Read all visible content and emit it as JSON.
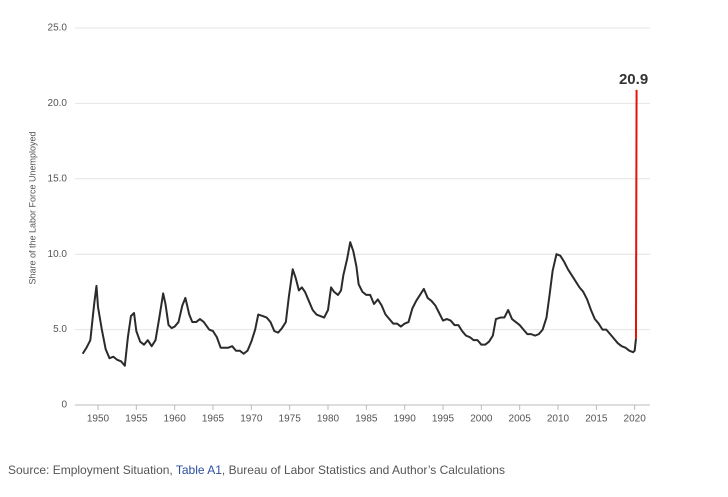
{
  "chart_data": {
    "type": "line",
    "y_label": "Share of the Labor Force Unemployed",
    "xlim": [
      1947,
      2022
    ],
    "xticks": [
      1950,
      1955,
      1960,
      1965,
      1970,
      1975,
      1980,
      1985,
      1990,
      1995,
      2000,
      2005,
      2010,
      2015,
      2020
    ],
    "ylim": [
      0,
      25
    ],
    "yticks": [
      0,
      {
        "value": 5,
        "label": "5.0"
      },
      {
        "value": 10,
        "label": "10.0"
      },
      {
        "value": 15,
        "label": "15.0"
      },
      {
        "value": 20,
        "label": "20.0"
      },
      {
        "value": 25,
        "label": "25.0"
      }
    ],
    "grid": true,
    "series": [
      {
        "color": "#2b2b2b",
        "x": [
          1948.0,
          1948.5,
          1949.0,
          1949.5,
          1949.8,
          1950.0,
          1950.5,
          1951.0,
          1951.5,
          1952.0,
          1952.5,
          1953.0,
          1953.5,
          1953.9,
          1954.3,
          1954.7,
          1955.0,
          1955.5,
          1956.0,
          1956.5,
          1957.0,
          1957.5,
          1958.0,
          1958.5,
          1958.8,
          1959.2,
          1959.6,
          1960.0,
          1960.5,
          1961.0,
          1961.4,
          1961.9,
          1962.3,
          1962.8,
          1963.3,
          1963.8,
          1964.5,
          1965.0,
          1965.5,
          1966.0,
          1966.5,
          1967.0,
          1967.5,
          1968.0,
          1968.5,
          1969.0,
          1969.5,
          1970.0,
          1970.5,
          1970.9,
          1971.5,
          1972.0,
          1972.5,
          1973.0,
          1973.5,
          1974.0,
          1974.5,
          1974.9,
          1975.4,
          1975.8,
          1976.2,
          1976.6,
          1977.0,
          1977.5,
          1978.0,
          1978.5,
          1979.0,
          1979.5,
          1980.0,
          1980.4,
          1980.8,
          1981.3,
          1981.7,
          1982.0,
          1982.5,
          1982.9,
          1983.3,
          1983.7,
          1984.0,
          1984.5,
          1985.0,
          1985.5,
          1986.0,
          1986.5,
          1987.0,
          1987.5,
          1988.0,
          1988.5,
          1989.0,
          1989.5,
          1990.0,
          1990.5,
          1991.0,
          1991.5,
          1992.0,
          1992.5,
          1993.0,
          1993.5,
          1994.0,
          1994.5,
          1995.0,
          1995.5,
          1996.0,
          1996.5,
          1997.0,
          1997.5,
          1998.0,
          1998.5,
          1999.0,
          1999.5,
          2000.0,
          2000.5,
          2001.0,
          2001.5,
          2001.9,
          2002.5,
          2003.0,
          2003.5,
          2004.0,
          2004.5,
          2005.0,
          2005.5,
          2006.0,
          2006.5,
          2007.0,
          2007.5,
          2008.0,
          2008.5,
          2008.9,
          2009.3,
          2009.8,
          2010.3,
          2010.8,
          2011.3,
          2011.8,
          2012.3,
          2012.8,
          2013.3,
          2013.8,
          2014.3,
          2014.8,
          2015.3,
          2015.8,
          2016.3,
          2016.8,
          2017.3,
          2017.8,
          2018.3,
          2018.8,
          2019.3,
          2019.8,
          2020.0,
          2020.17
        ],
        "values": [
          3.4,
          3.8,
          4.3,
          6.7,
          7.9,
          6.5,
          5.0,
          3.7,
          3.1,
          3.2,
          3.0,
          2.9,
          2.6,
          4.5,
          5.9,
          6.1,
          4.9,
          4.2,
          4.0,
          4.3,
          3.9,
          4.3,
          5.8,
          7.4,
          6.7,
          5.3,
          5.1,
          5.2,
          5.5,
          6.6,
          7.1,
          6.0,
          5.5,
          5.5,
          5.7,
          5.5,
          5.0,
          4.9,
          4.5,
          3.8,
          3.8,
          3.8,
          3.9,
          3.6,
          3.6,
          3.4,
          3.6,
          4.2,
          5.0,
          6.0,
          5.9,
          5.8,
          5.5,
          4.9,
          4.8,
          5.1,
          5.5,
          7.2,
          9.0,
          8.4,
          7.6,
          7.8,
          7.5,
          6.9,
          6.3,
          6.0,
          5.9,
          5.8,
          6.3,
          7.8,
          7.5,
          7.3,
          7.6,
          8.6,
          9.7,
          10.8,
          10.2,
          9.2,
          8.0,
          7.5,
          7.3,
          7.3,
          6.7,
          7.0,
          6.6,
          6.0,
          5.7,
          5.4,
          5.4,
          5.2,
          5.4,
          5.5,
          6.4,
          6.9,
          7.3,
          7.7,
          7.1,
          6.9,
          6.6,
          6.1,
          5.6,
          5.7,
          5.6,
          5.3,
          5.3,
          4.9,
          4.6,
          4.5,
          4.3,
          4.3,
          4.0,
          4.0,
          4.2,
          4.6,
          5.7,
          5.8,
          5.8,
          6.3,
          5.7,
          5.5,
          5.3,
          5.0,
          4.7,
          4.7,
          4.6,
          4.7,
          5.0,
          5.8,
          7.3,
          8.9,
          10.0,
          9.9,
          9.5,
          9.0,
          8.6,
          8.2,
          7.8,
          7.5,
          7.0,
          6.3,
          5.7,
          5.4,
          5.0,
          5.0,
          4.7,
          4.4,
          4.1,
          3.9,
          3.8,
          3.6,
          3.5,
          3.6,
          4.4
        ]
      },
      {
        "color": "#e3120b",
        "x": [
          2020.17,
          2020.25
        ],
        "values": [
          4.4,
          20.9
        ]
      }
    ]
  },
  "source": {
    "prefix": "Source: Employment Situation, ",
    "link": "Table A1",
    "suffix": ", Bureau of Labor Statistics and Author’s Calculations"
  }
}
